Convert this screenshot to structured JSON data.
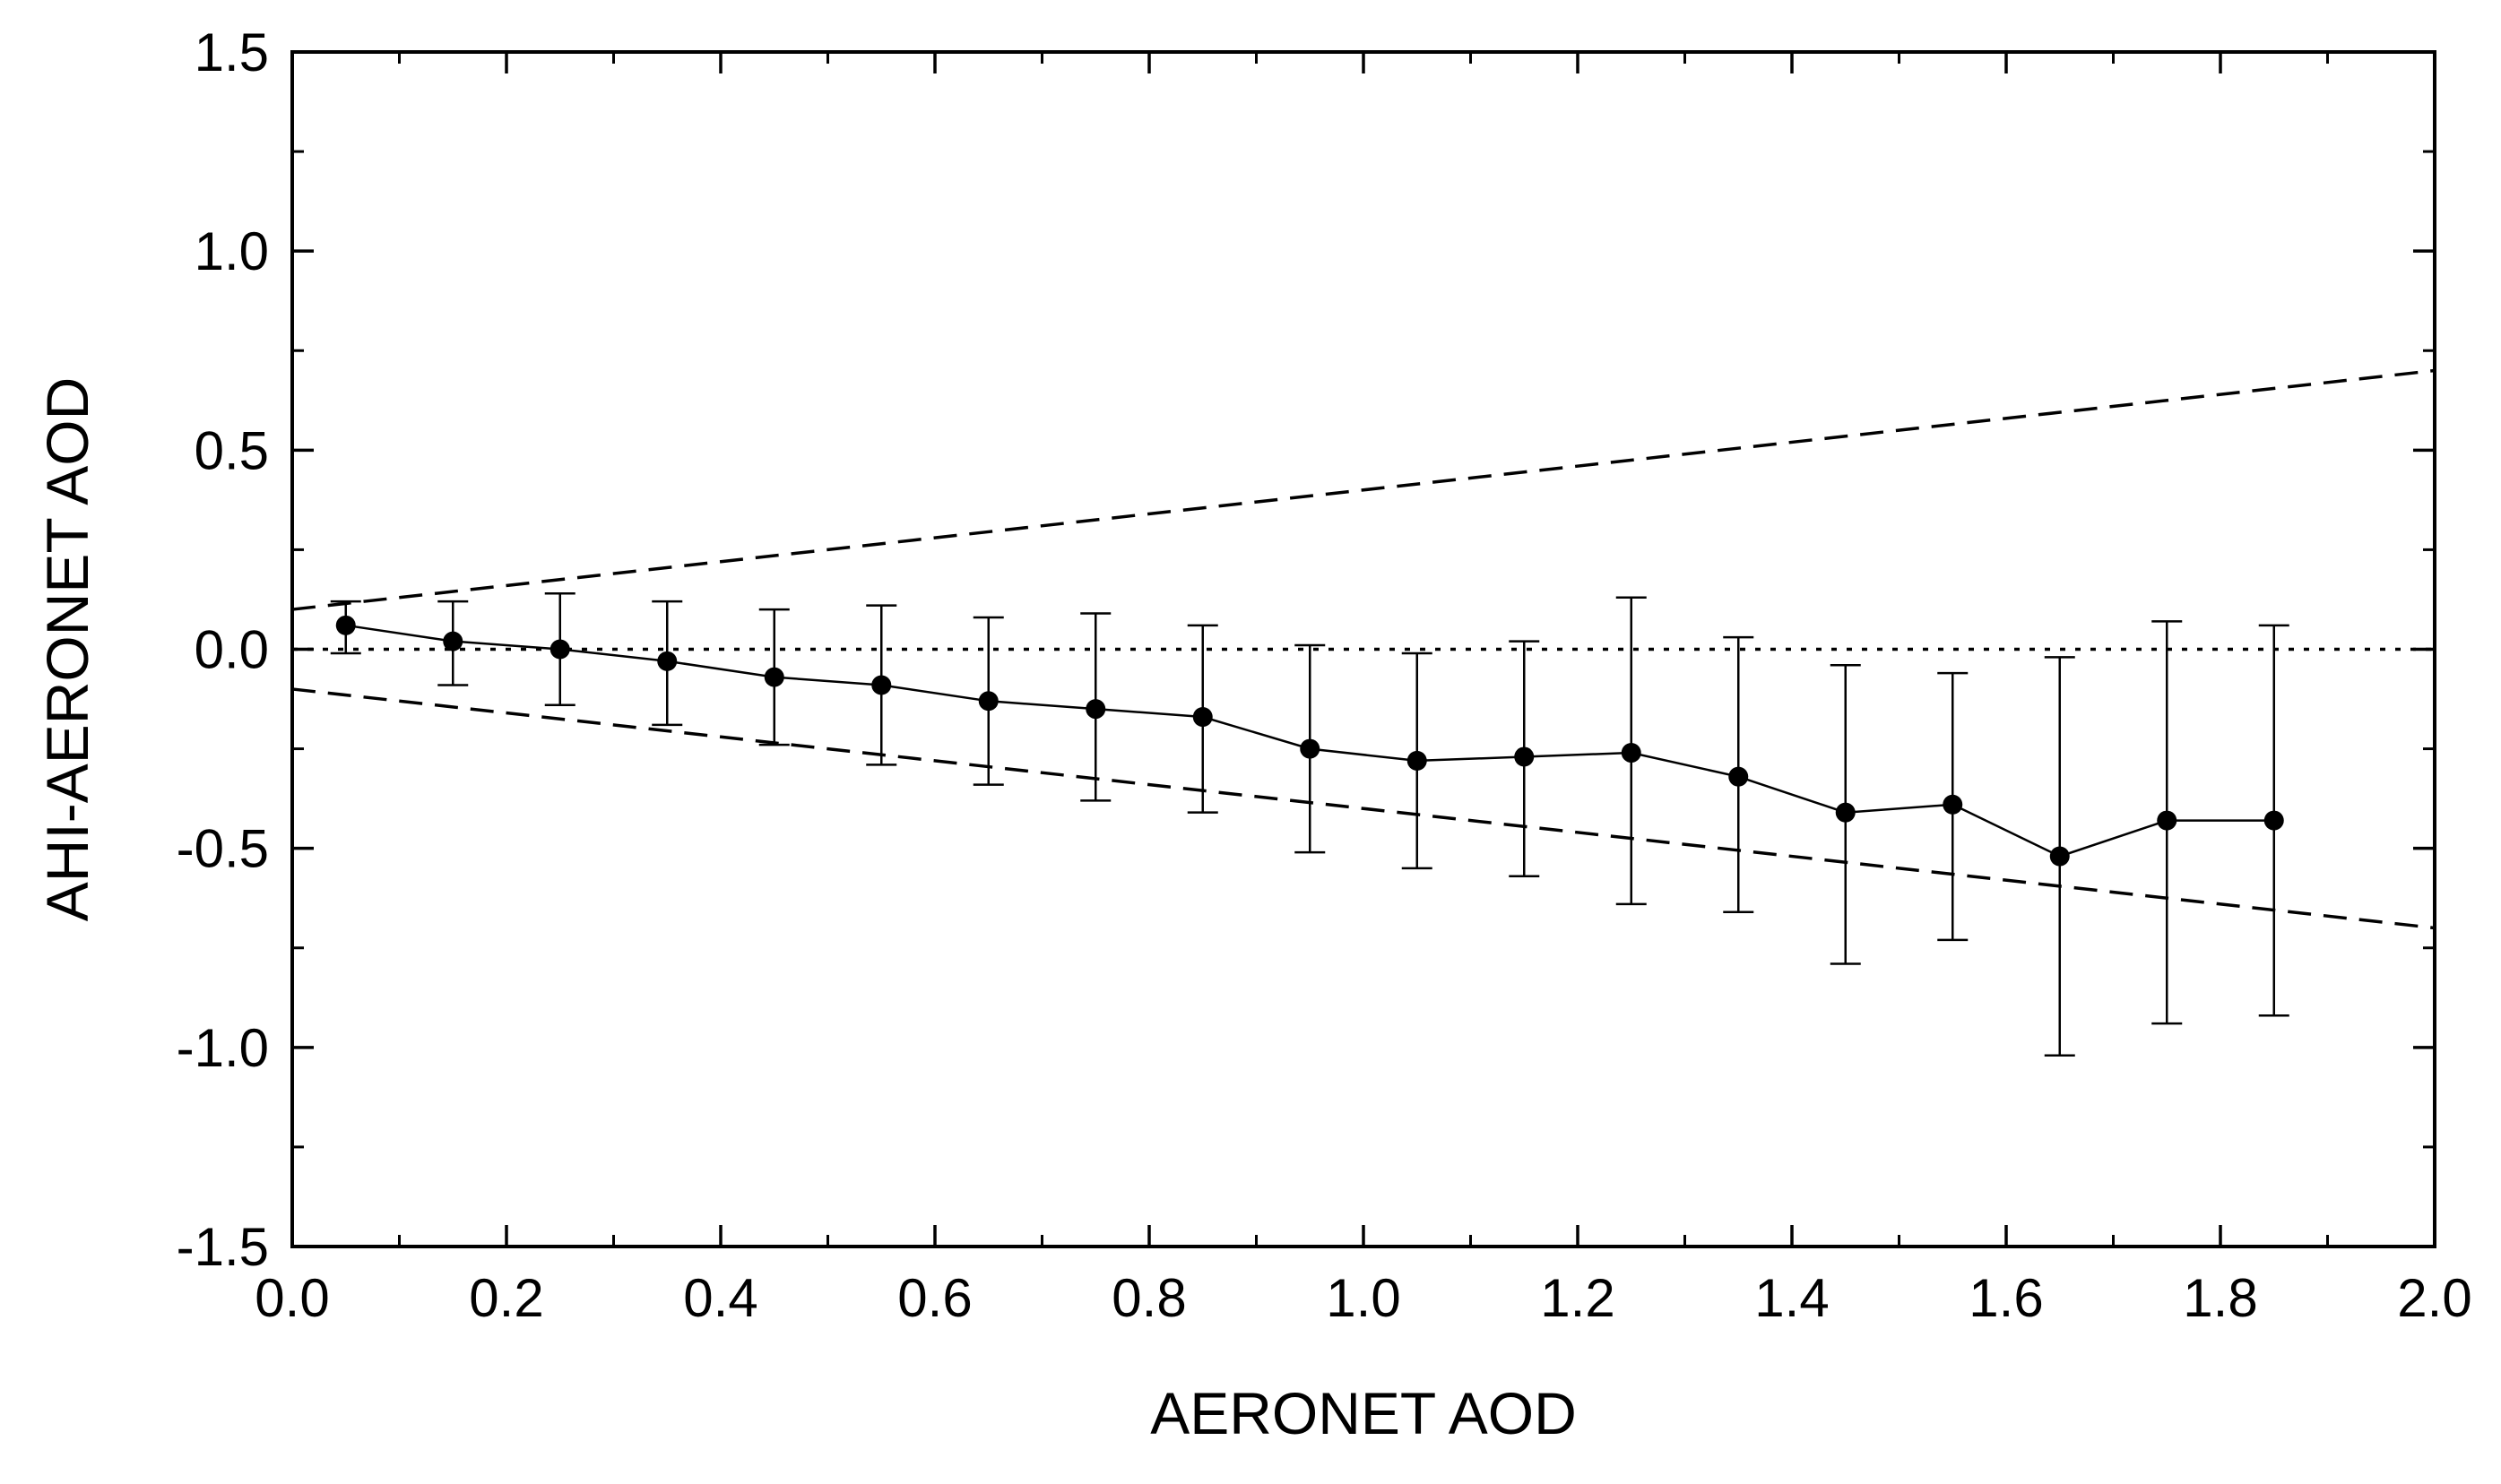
{
  "chart_data": {
    "type": "scatter",
    "title": "",
    "xlabel": "AERONET AOD",
    "ylabel": "AHI-AERONET AOD",
    "xlim": [
      0.0,
      2.0
    ],
    "ylim": [
      -1.5,
      1.5
    ],
    "x_ticks": [
      "0.0",
      "0.2",
      "0.4",
      "0.6",
      "0.8",
      "1.0",
      "1.2",
      "1.4",
      "1.6",
      "1.8",
      "2.0"
    ],
    "y_ticks": [
      "-1.5",
      "-1.0",
      "-0.5",
      "0.0",
      "0.5",
      "1.0",
      "1.5"
    ],
    "grid": false,
    "series": [
      {
        "x": [
          0.05,
          0.15,
          0.25,
          0.35,
          0.45,
          0.55,
          0.65,
          0.75,
          0.85,
          0.95,
          1.05,
          1.15,
          1.25,
          1.35,
          1.45,
          1.55,
          1.65,
          1.75,
          1.85
        ],
        "y": [
          0.06,
          0.02,
          0.0,
          -0.03,
          -0.07,
          -0.09,
          -0.13,
          -0.15,
          -0.17,
          -0.25,
          -0.28,
          -0.27,
          -0.26,
          -0.32,
          -0.41,
          -0.39,
          -0.52,
          -0.43,
          -0.43
        ],
        "y_low": [
          -0.01,
          -0.09,
          -0.14,
          -0.19,
          -0.24,
          -0.29,
          -0.34,
          -0.38,
          -0.41,
          -0.51,
          -0.55,
          -0.57,
          -0.64,
          -0.66,
          -0.79,
          -0.73,
          -1.02,
          -0.94,
          -0.92
        ],
        "y_high": [
          0.12,
          0.12,
          0.14,
          0.12,
          0.1,
          0.11,
          0.08,
          0.09,
          0.06,
          0.01,
          -0.01,
          0.02,
          0.13,
          0.03,
          -0.04,
          -0.06,
          -0.02,
          0.07,
          0.06
        ],
        "color": "#000000",
        "marker": "filled-circle",
        "connected": true
      }
    ],
    "reference_lines": [
      {
        "style": "dashed",
        "x": [
          0.0,
          2.0
        ],
        "y": [
          0.1,
          0.7
        ]
      },
      {
        "style": "dashed",
        "x": [
          0.0,
          2.0
        ],
        "y": [
          -0.1,
          -0.7
        ]
      },
      {
        "style": "dotted",
        "x": [
          0.0,
          2.0
        ],
        "y": [
          0.0,
          0.0
        ]
      }
    ]
  }
}
